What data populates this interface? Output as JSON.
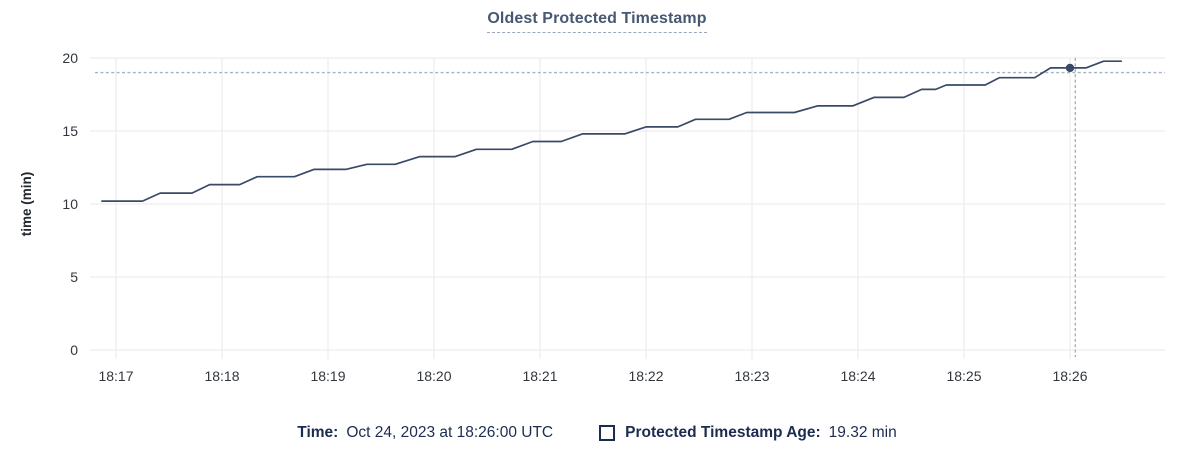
{
  "title": "Oldest Protected Timestamp",
  "footer": {
    "time_label": "Time:",
    "time_value": "Oct 24, 2023 at 18:26:00 UTC",
    "series_label": "Protected Timestamp Age:",
    "series_value": "19.32 min"
  },
  "chart_data": {
    "type": "line",
    "title": "Oldest Protected Timestamp",
    "xlabel": "",
    "ylabel": "time (min)",
    "ylim": [
      0,
      20
    ],
    "y_ticks": [
      0,
      5,
      10,
      15,
      20
    ],
    "x_ticks": [
      "18:17",
      "18:18",
      "18:19",
      "18:20",
      "18:21",
      "18:22",
      "18:23",
      "18:24",
      "18:25",
      "18:26"
    ],
    "x_tick_interval_seconds": 60,
    "grid": true,
    "legend_position": "bottom",
    "series": [
      {
        "name": "Protected Timestamp Age",
        "unit": "min",
        "note": "points are [seconds after 18:17:00, minutes]",
        "points": [
          [
            -8,
            10.2
          ],
          [
            15,
            10.2
          ],
          [
            25,
            10.75
          ],
          [
            43,
            10.75
          ],
          [
            53,
            11.33
          ],
          [
            70,
            11.33
          ],
          [
            80,
            11.87
          ],
          [
            101,
            11.87
          ],
          [
            112,
            12.37
          ],
          [
            130,
            12.37
          ],
          [
            142,
            12.72
          ],
          [
            158,
            12.72
          ],
          [
            172,
            13.25
          ],
          [
            192,
            13.25
          ],
          [
            204,
            13.75
          ],
          [
            224,
            13.75
          ],
          [
            236,
            14.28
          ],
          [
            252,
            14.28
          ],
          [
            264,
            14.8
          ],
          [
            288,
            14.8
          ],
          [
            300,
            15.28
          ],
          [
            318,
            15.28
          ],
          [
            328,
            15.8
          ],
          [
            347,
            15.8
          ],
          [
            357,
            16.27
          ],
          [
            384,
            16.27
          ],
          [
            397,
            16.72
          ],
          [
            417,
            16.72
          ],
          [
            429,
            17.3
          ],
          [
            446,
            17.3
          ],
          [
            456,
            17.85
          ],
          [
            464,
            17.85
          ],
          [
            470,
            18.15
          ],
          [
            492,
            18.15
          ],
          [
            500,
            18.65
          ],
          [
            520,
            18.65
          ],
          [
            529,
            19.32
          ],
          [
            549,
            19.32
          ],
          [
            559,
            19.78
          ],
          [
            569,
            19.78
          ]
        ]
      }
    ],
    "hover": {
      "time": "18:26:00",
      "value_min": 19.32,
      "point_t_seconds": 540,
      "crosshair_t_seconds": 543,
      "crosshair_value": 19.0
    },
    "colors": {
      "line": "#394a67",
      "point": "#394a67",
      "crosshair": "#a4b4c4",
      "grid": "#ededed",
      "tick_text": "#33373d",
      "axis_label": "#22272e",
      "title": "#475872",
      "footer_text": "#1c2c50"
    }
  }
}
